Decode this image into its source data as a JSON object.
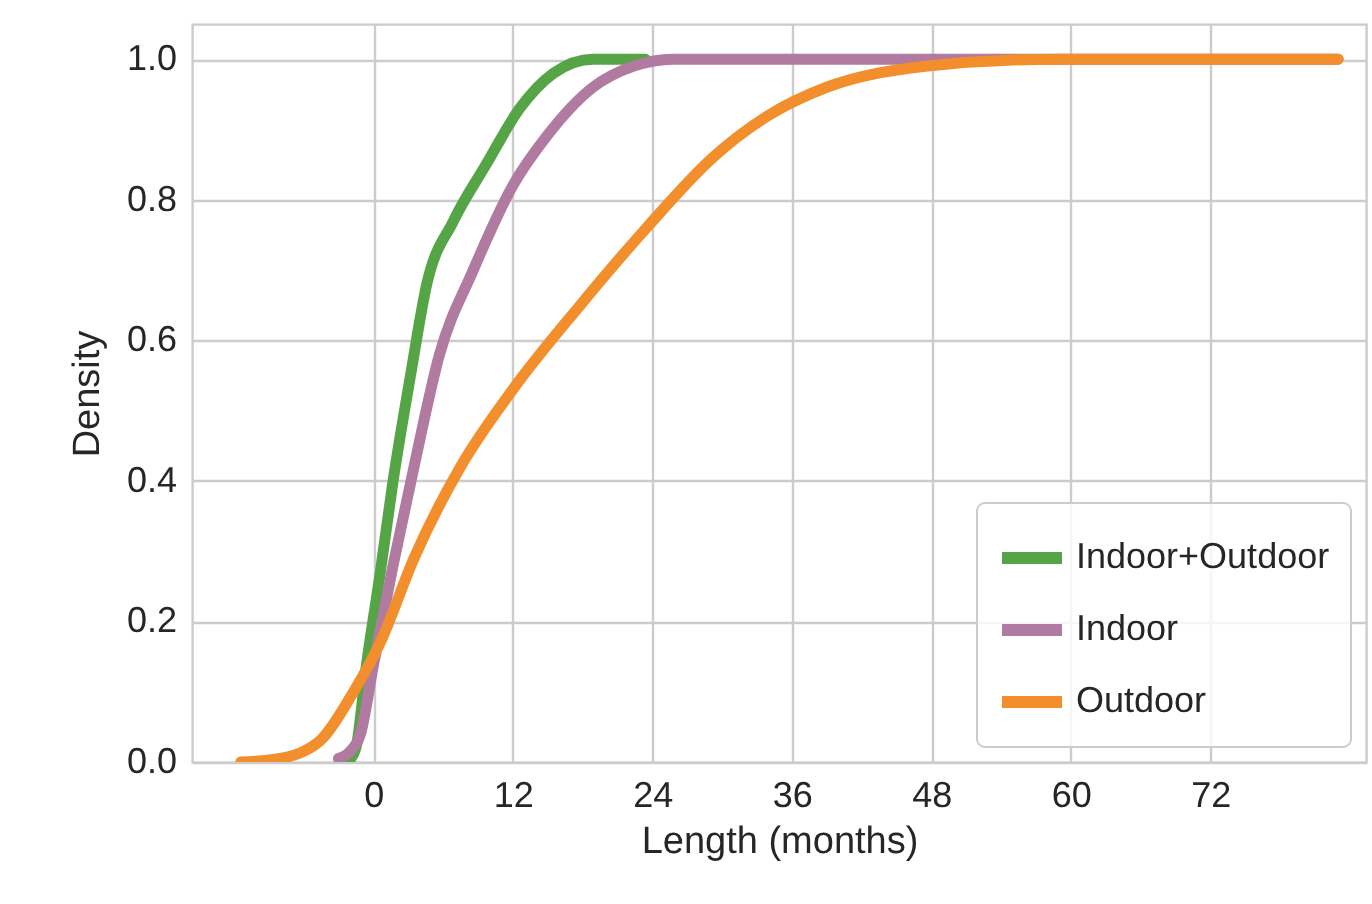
{
  "chart_data": {
    "type": "line",
    "xlabel": "Length (months)",
    "ylabel": "Density",
    "xlim": [
      -15.6,
      85.4
    ],
    "xticks": [
      0,
      12,
      24,
      36,
      48,
      60,
      72
    ],
    "ylim": [
      0,
      1.05
    ],
    "yticks": [
      {
        "value": 0,
        "label": "0.0"
      },
      0.2,
      0.4,
      0.6,
      0.8,
      {
        "value": 1,
        "label": "1.0"
      }
    ],
    "grid": true,
    "legend": "bottom right",
    "series": [
      {
        "name": "Indoor+Outdoor",
        "color": "#55a546",
        "x": [
          -2.2,
          -1.5,
          -0.6,
          0.6,
          1.7,
          3.2,
          4.6,
          6.9,
          9.7,
          12.6,
          15.5,
          18.9,
          23.4
        ],
        "values": [
          0,
          0.02,
          0.137,
          0.27,
          0.4,
          0.55,
          0.68,
          0.77,
          0.85,
          0.93,
          0.98,
          1.0,
          1.0
        ]
      },
      {
        "name": "Indoor",
        "color": "#b07aa1",
        "x": [
          -3,
          -2,
          -1.1,
          0,
          1.7,
          3.5,
          5.7,
          8.6,
          12,
          14.9,
          18.9,
          22.4,
          25.8,
          83
        ],
        "values": [
          0.005,
          0.015,
          0.04,
          0.137,
          0.28,
          0.42,
          0.58,
          0.7,
          0.82,
          0.89,
          0.96,
          0.99,
          1.0,
          1.0
        ]
      },
      {
        "name": "Outdoor",
        "color": "#f28e2b",
        "x": [
          -11.4,
          -8,
          -6,
          -4.6,
          -1.7,
          0.6,
          3.5,
          7.5,
          12,
          17.8,
          23.5,
          29.2,
          34,
          39,
          47.5,
          59,
          83
        ],
        "values": [
          0,
          0.005,
          0.015,
          0.03,
          0.1,
          0.17,
          0.29,
          0.42,
          0.53,
          0.65,
          0.76,
          0.86,
          0.92,
          0.96,
          0.99,
          1.0,
          1.0
        ]
      }
    ]
  }
}
